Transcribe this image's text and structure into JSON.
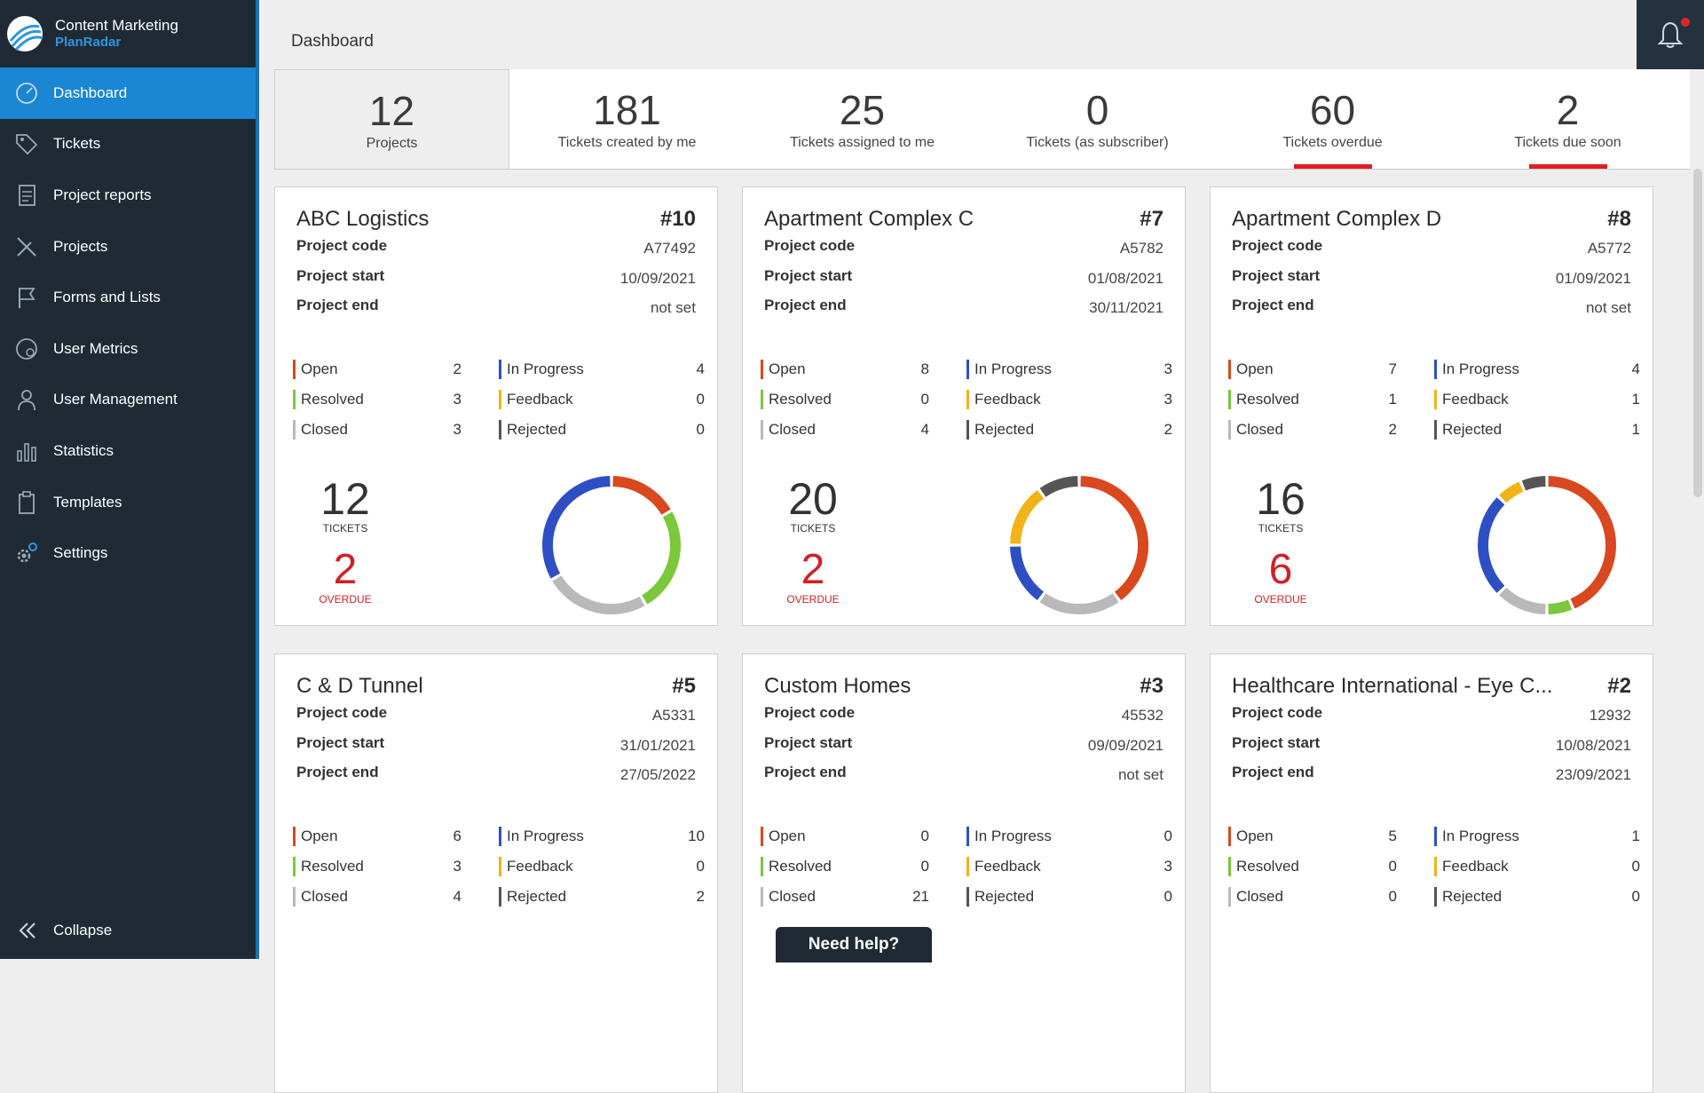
{
  "brand": {
    "name": "Content Marketing",
    "sub": "PlanRadar"
  },
  "nav": [
    {
      "label": "Dashboard",
      "icon": "dashboard-icon",
      "active": true
    },
    {
      "label": "Tickets",
      "icon": "tag-icon"
    },
    {
      "label": "Project reports",
      "icon": "report-icon"
    },
    {
      "label": "Projects",
      "icon": "ruler-pencil-icon"
    },
    {
      "label": "Forms and Lists",
      "icon": "flag-icon"
    },
    {
      "label": "User Metrics",
      "icon": "user-metrics-icon"
    },
    {
      "label": "User Management",
      "icon": "user-icon"
    },
    {
      "label": "Statistics",
      "icon": "bar-chart-icon"
    },
    {
      "label": "Templates",
      "icon": "clipboard-icon"
    },
    {
      "label": "Settings",
      "icon": "gear-icon"
    }
  ],
  "collapse_label": "Collapse",
  "header": {
    "title": "Dashboard"
  },
  "stats": [
    {
      "value": "12",
      "label": "Projects"
    },
    {
      "value": "181",
      "label": "Tickets created by me"
    },
    {
      "value": "25",
      "label": "Tickets assigned to me"
    },
    {
      "value": "0",
      "label": "Tickets (as subscriber)"
    },
    {
      "value": "60",
      "label": "Tickets overdue"
    },
    {
      "value": "2",
      "label": "Tickets due soon"
    }
  ],
  "labels": {
    "project_code": "Project code",
    "project_start": "Project start",
    "project_end": "Project end",
    "open": "Open",
    "in_progress": "In Progress",
    "resolved": "Resolved",
    "feedback": "Feedback",
    "closed": "Closed",
    "rejected": "Rejected",
    "tickets": "TICKETS",
    "overdue": "OVERDUE"
  },
  "colors": {
    "open": "#d9481f",
    "in_progress": "#2e4fc4",
    "resolved": "#7bc83a",
    "feedback": "#f2b318",
    "closed": "#b9b9b9",
    "rejected": "#555555"
  },
  "projects": [
    {
      "name": "ABC Logistics",
      "id": "#10",
      "code": "A77492",
      "start": "10/09/2021",
      "end": "not set",
      "open": "2",
      "in_progress": "4",
      "resolved": "3",
      "feedback": "0",
      "closed": "3",
      "rejected": "0",
      "tickets": "12",
      "overdue": "2"
    },
    {
      "name": "Apartment Complex C",
      "id": "#7",
      "code": "A5782",
      "start": "01/08/2021",
      "end": "30/11/2021",
      "open": "8",
      "in_progress": "3",
      "resolved": "0",
      "feedback": "3",
      "closed": "4",
      "rejected": "2",
      "tickets": "20",
      "overdue": "2"
    },
    {
      "name": "Apartment Complex D",
      "id": "#8",
      "code": "A5772",
      "start": "01/09/2021",
      "end": "not set",
      "open": "7",
      "in_progress": "4",
      "resolved": "1",
      "feedback": "1",
      "closed": "2",
      "rejected": "1",
      "tickets": "16",
      "overdue": "6"
    },
    {
      "name": "C & D Tunnel",
      "id": "#5",
      "code": "A5331",
      "start": "31/01/2021",
      "end": "27/05/2022",
      "open": "6",
      "in_progress": "10",
      "resolved": "3",
      "feedback": "0",
      "closed": "4",
      "rejected": "2"
    },
    {
      "name": "Custom Homes",
      "id": "#3",
      "code": "45532",
      "start": "09/09/2021",
      "end": "not set",
      "open": "0",
      "in_progress": "0",
      "resolved": "0",
      "feedback": "3",
      "closed": "21",
      "rejected": "0"
    },
    {
      "name": "Healthcare International - Eye C...",
      "id": "#2",
      "code": "12932",
      "start": "10/08/2021",
      "end": "23/09/2021",
      "open": "5",
      "in_progress": "1",
      "resolved": "0",
      "feedback": "0",
      "closed": "0",
      "rejected": "0"
    }
  ],
  "need_help": "Need help?"
}
